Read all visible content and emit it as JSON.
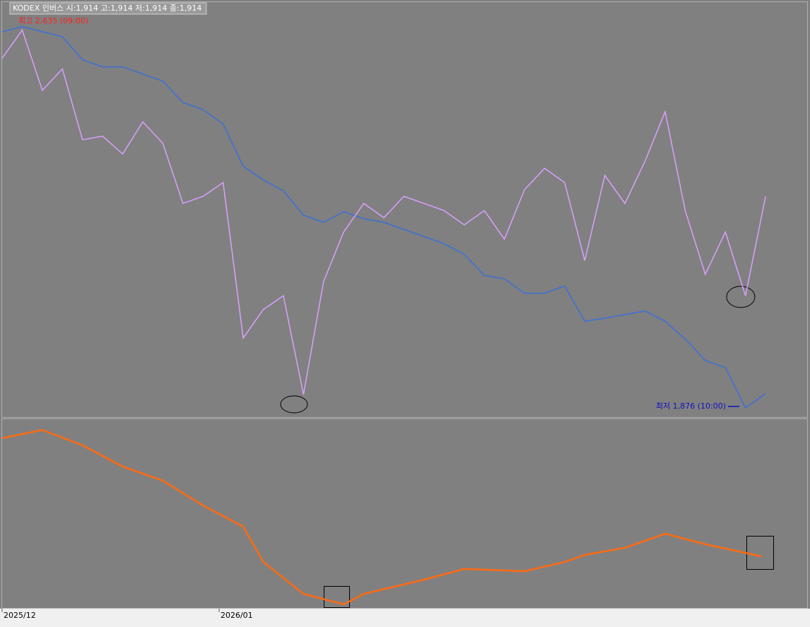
{
  "chart_data": [
    {
      "type": "line",
      "title": "KODEX 인버스 시:1,914 고:1,914 저:1,914 종:1,914",
      "annotations": [
        "최고 2,635 (09:00)",
        "최저 1,876 (10:00)"
      ],
      "xlim": [
        0,
        40
      ],
      "ylim": [
        1858,
        2672
      ],
      "x": [
        0,
        1,
        2,
        3,
        4,
        5,
        6,
        7,
        8,
        9,
        10,
        11,
        12,
        13,
        14,
        15,
        16,
        17,
        18,
        19,
        20,
        21,
        22,
        23,
        24,
        25,
        26,
        27,
        28,
        29,
        30,
        31,
        32,
        33,
        34,
        35,
        36,
        37,
        38
      ],
      "series": [
        {
          "name": "KODEX 인버스",
          "color": "#3a6fd8",
          "values": [
            2614,
            2624,
            2614,
            2604,
            2559,
            2545,
            2545,
            2531,
            2517,
            2475,
            2461,
            2433,
            2350,
            2323,
            2302,
            2254,
            2240,
            2261,
            2247,
            2240,
            2226,
            2212,
            2198,
            2177,
            2136,
            2129,
            2101,
            2101,
            2115,
            2046,
            2052,
            2059,
            2066,
            2046,
            2011,
            1969,
            1955,
            1876,
            1904
          ]
        },
        {
          "color": "#d9a0ff",
          "values": [
            2562,
            2617,
            2499,
            2541,
            2402,
            2409,
            2374,
            2437,
            2395,
            2277,
            2291,
            2318,
            2013,
            2069,
            2096,
            1902,
            2124,
            2221,
            2277,
            2249,
            2291,
            2277,
            2263,
            2235,
            2263,
            2207,
            2304,
            2346,
            2318,
            2165,
            2332,
            2277,
            2360,
            2457,
            2263,
            2138,
            2221,
            2096,
            2291
          ]
        }
      ]
    },
    {
      "type": "line",
      "xlim": [
        0,
        40
      ],
      "ylim": [
        0,
        100
      ],
      "xticks": [
        {
          "value": 0,
          "label": "2025/12"
        },
        {
          "value": 10.8,
          "label": "2026/01"
        }
      ],
      "x": [
        0,
        2,
        4,
        6,
        8,
        10,
        12,
        13,
        15,
        17,
        18,
        21,
        23,
        26,
        28,
        29,
        31,
        33,
        35,
        37.8
      ],
      "series": [
        {
          "color": "#ff6a10",
          "values": [
            90.6,
            95,
            86.8,
            75.5,
            67.9,
            54.7,
            43.4,
            24.5,
            7.5,
            1.9,
            7.5,
            15.1,
            20.8,
            19.6,
            24.5,
            28.3,
            32.1,
            39.6,
            34,
            27.5
          ]
        }
      ]
    }
  ]
}
